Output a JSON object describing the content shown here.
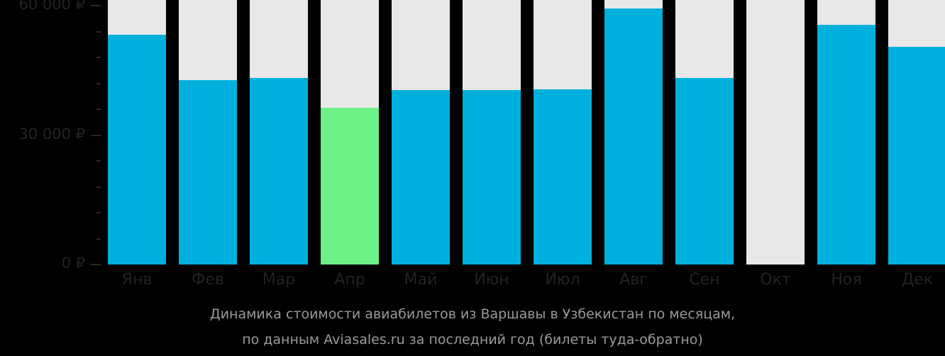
{
  "chart_data": {
    "type": "bar",
    "title": "Динамика стоимости авиабилетов из Варшавы в Узбекистан по месяцам, по данным Aviasales.ru за последний год (билеты туда-обратно)",
    "xlabel": "",
    "ylabel": "",
    "ylim": [
      0,
      60000
    ],
    "yticks": [
      "0 ₽",
      "30 000 ₽",
      "60 000 ₽"
    ],
    "categories": [
      "Янв",
      "Фев",
      "Мар",
      "Апр",
      "Май",
      "Июн",
      "Июл",
      "Авг",
      "Сен",
      "Окт",
      "Ноя",
      "Дек"
    ],
    "values": [
      53300,
      42700,
      43200,
      36300,
      40400,
      40400,
      40600,
      59300,
      43200,
      null,
      55600,
      50500
    ],
    "highlight_index": 3,
    "colors": {
      "bar": "#00b0dc",
      "highlight": "#6cf287",
      "background_bar": "#e8e8e8",
      "page": "#000000"
    },
    "grid": false,
    "legend": null
  },
  "axis": {
    "y_labels": [
      {
        "text": "60 000 ₽",
        "value": 60000
      },
      {
        "text": "30 000 ₽",
        "value": 30000
      },
      {
        "text": "0 ₽",
        "value": 0
      }
    ]
  },
  "caption": {
    "line1": "Динамика стоимости авиабилетов из Варшавы в Узбекистан по месяцам,",
    "line2": "по данным Aviasales.ru за последний год (билеты туда-обратно)"
  }
}
